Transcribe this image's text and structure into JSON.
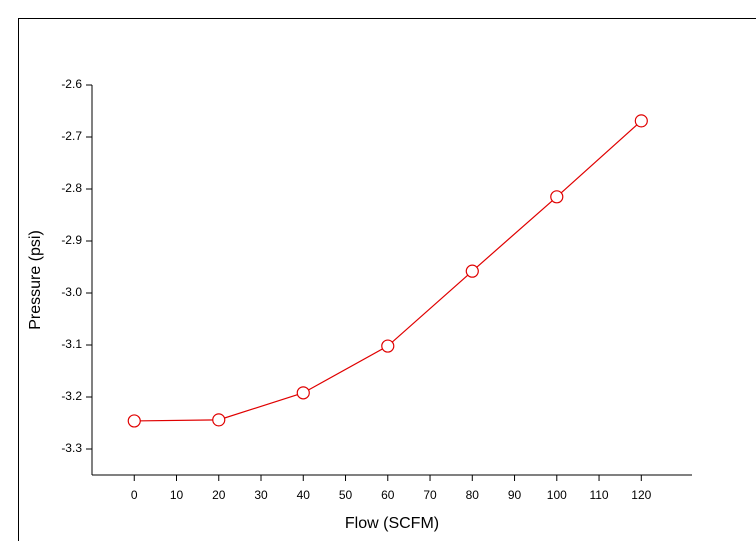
{
  "chart_data": {
    "type": "line",
    "x_label": "Flow (SCFM)",
    "y_label": "Pressure (psi)",
    "x": [
      0,
      20,
      40,
      60,
      80,
      100,
      120
    ],
    "series": [
      {
        "color": "#e00000",
        "values": [
          -3.246,
          -3.244,
          -3.192,
          -3.102,
          -2.958,
          -2.815,
          -2.669
        ]
      }
    ],
    "xlim": [
      -10,
      132
    ],
    "xticks": [
      0,
      10,
      20,
      30,
      40,
      50,
      60,
      70,
      80,
      90,
      100,
      110,
      120
    ],
    "ylim": [
      -3.35,
      -2.6
    ],
    "yticks": [
      {
        "value": -3.3,
        "label": "-3.3"
      },
      {
        "value": -3.2,
        "label": "-3.2"
      },
      {
        "value": -3.1,
        "label": "-3.1"
      },
      {
        "value": -3,
        "label": "-3.0"
      },
      {
        "value": -2.9,
        "label": "-2.9"
      },
      {
        "value": -2.8,
        "label": "-2.8"
      },
      {
        "value": -2.7,
        "label": "-2.7"
      },
      {
        "value": -2.6,
        "label": "-2.6"
      }
    ]
  }
}
